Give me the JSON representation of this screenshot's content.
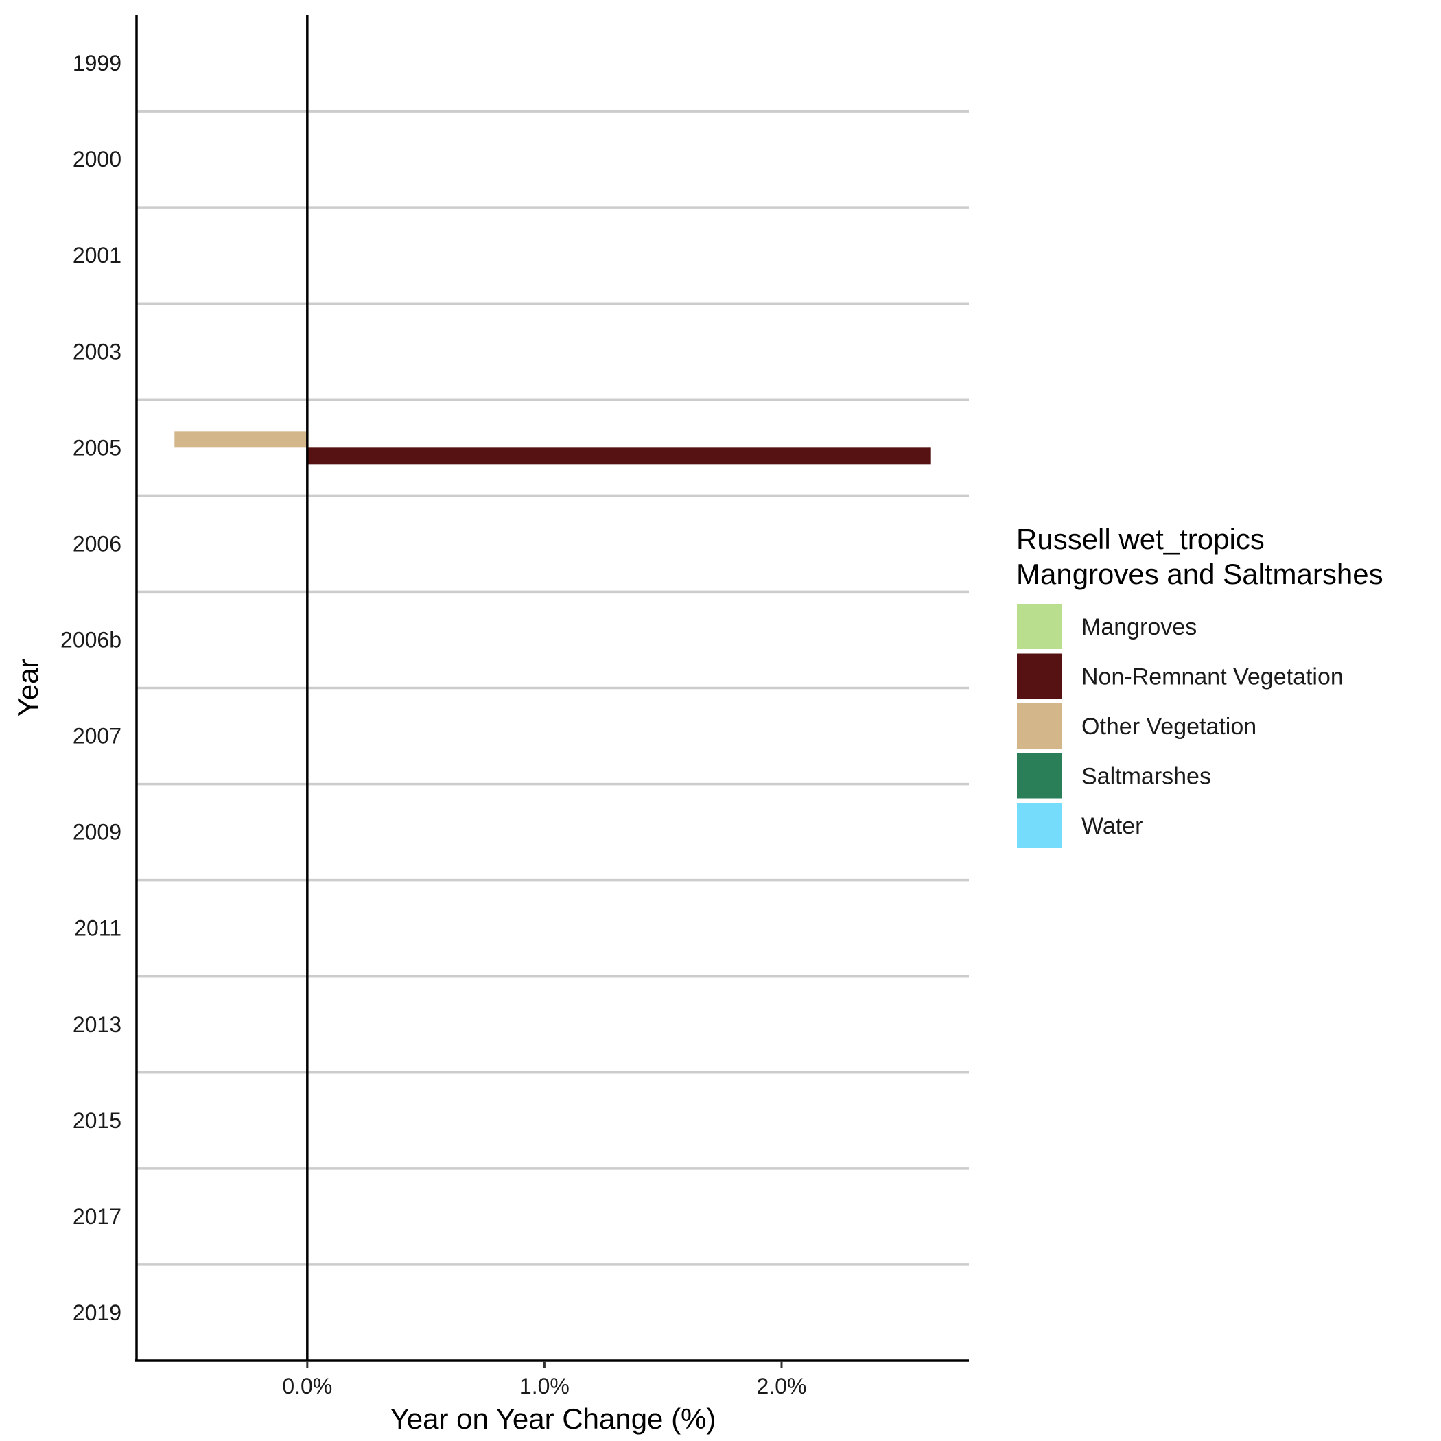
{
  "chart_data": {
    "type": "bar",
    "orientation": "horizontal",
    "categories": [
      "1999",
      "2000",
      "2001",
      "2003",
      "2005",
      "2006",
      "2006b",
      "2007",
      "2009",
      "2011",
      "2013",
      "2015",
      "2017",
      "2019"
    ],
    "series": [
      {
        "name": "Mangroves",
        "color": "#b8de8e",
        "values": [
          null,
          null,
          null,
          null,
          null,
          null,
          null,
          null,
          null,
          null,
          null,
          null,
          null,
          null
        ]
      },
      {
        "name": "Non-Remnant Vegetation",
        "color": "#561212",
        "values": [
          null,
          null,
          null,
          null,
          2.63,
          null,
          null,
          null,
          null,
          null,
          null,
          null,
          null,
          null
        ]
      },
      {
        "name": "Other Vegetation",
        "color": "#d4b68b",
        "values": [
          null,
          null,
          null,
          null,
          -0.56,
          null,
          null,
          null,
          null,
          null,
          null,
          null,
          null,
          null
        ]
      },
      {
        "name": "Saltmarshes",
        "color": "#2a7f58",
        "values": [
          null,
          null,
          null,
          null,
          null,
          null,
          null,
          null,
          null,
          null,
          null,
          null,
          null,
          null
        ]
      },
      {
        "name": "Water",
        "color": "#76dcfc",
        "values": [
          null,
          null,
          null,
          null,
          null,
          null,
          null,
          null,
          null,
          null,
          null,
          null,
          null,
          null
        ]
      }
    ],
    "xlabel": "Year on Year Change (%)",
    "ylabel": "Year",
    "xlim": [
      -0.72,
      2.79
    ],
    "xticks": [
      0,
      1,
      2
    ],
    "xtick_labels": [
      "0.0%",
      "1.0%",
      "2.0%"
    ],
    "legend": {
      "title_lines": [
        "Russell wet_tropics",
        "Mangroves and Saltmarshes"
      ],
      "placement": "right"
    },
    "grid": "horizontal separators between years",
    "zero_line": true
  }
}
